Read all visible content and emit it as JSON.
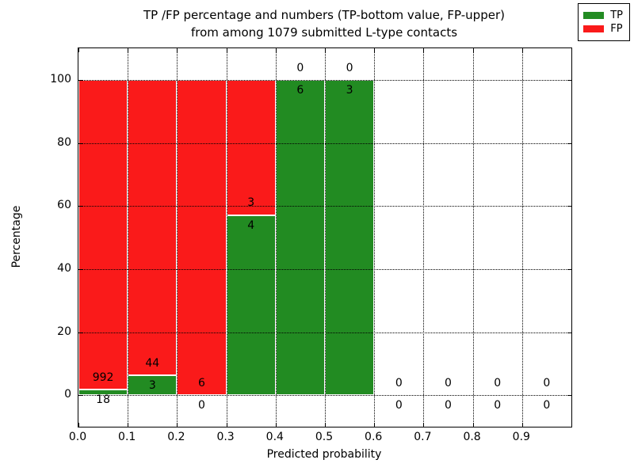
{
  "title_line1": "TP /FP percentage and numbers (TP-bottom value, FP-upper)",
  "title_line2": "from among 1079 submitted L-type contacts",
  "chart_data": {
    "type": "bar",
    "stacked": true,
    "title": "TP /FP percentage and numbers (TP-bottom value, FP-upper) from among 1079 submitted L-type contacts",
    "xlabel": "Predicted probability",
    "ylabel": "Percentage",
    "xlim": [
      0.0,
      1.0
    ],
    "ylim": [
      -10,
      110
    ],
    "xticks": [
      0.0,
      0.1,
      0.2,
      0.3,
      0.4,
      0.5,
      0.6,
      0.7,
      0.8,
      0.9
    ],
    "yticks": [
      0,
      20,
      40,
      60,
      80,
      100
    ],
    "grid": "dotted",
    "grid_above_bars": true,
    "total_contacts": 1079,
    "colors": {
      "tp": "#228b22",
      "fp": "#fa1a1a",
      "bar_edge": "#ffffff",
      "text": "#000000",
      "frame": "#000000"
    },
    "legend": {
      "position": "upper right",
      "entries": [
        {
          "label": "TP",
          "color": "#228b22"
        },
        {
          "label": "FP",
          "color": "#fa1a1a"
        }
      ]
    },
    "series_note": "Each bin stacks TP percent (green, bottom) and FP percent (red, top); labels show raw counts: TP below, FP above",
    "bins": [
      {
        "x0": 0.0,
        "x1": 0.1,
        "tp": 18,
        "fp": 992
      },
      {
        "x0": 0.1,
        "x1": 0.2,
        "tp": 3,
        "fp": 44
      },
      {
        "x0": 0.2,
        "x1": 0.3,
        "tp": 0,
        "fp": 6
      },
      {
        "x0": 0.3,
        "x1": 0.4,
        "tp": 4,
        "fp": 3
      },
      {
        "x0": 0.4,
        "x1": 0.5,
        "tp": 6,
        "fp": 0
      },
      {
        "x0": 0.5,
        "x1": 0.6,
        "tp": 3,
        "fp": 0
      },
      {
        "x0": 0.6,
        "x1": 0.7,
        "tp": 0,
        "fp": 0
      },
      {
        "x0": 0.7,
        "x1": 0.8,
        "tp": 0,
        "fp": 0
      },
      {
        "x0": 0.8,
        "x1": 0.9,
        "tp": 0,
        "fp": 0
      },
      {
        "x0": 0.9,
        "x1": 1.0,
        "tp": 0,
        "fp": 0
      }
    ]
  }
}
